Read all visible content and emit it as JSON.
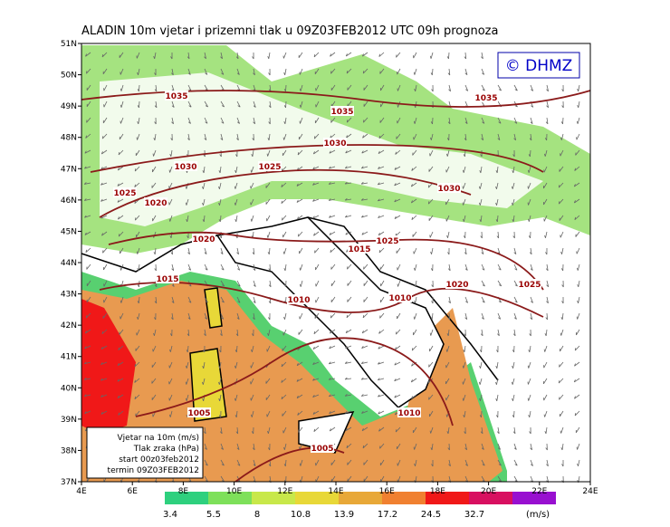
{
  "title": "ALADIN 10m vjetar i prizemni tlak u 09Z03FEB2012 UTC 09h prognoza",
  "logo": "© DHMZ",
  "lon_ticks": [
    "4E",
    "6E",
    "8E",
    "10E",
    "12E",
    "14E",
    "16E",
    "18E",
    "20E",
    "22E",
    "24E"
  ],
  "lat_ticks": [
    "37N",
    "38N",
    "39N",
    "40N",
    "41N",
    "42N",
    "43N",
    "44N",
    "45N",
    "46N",
    "47N",
    "48N",
    "49N",
    "50N",
    "51N"
  ],
  "isobars": [
    "1035",
    "1035",
    "1035",
    "1030",
    "1030",
    "1025",
    "1030",
    "1025",
    "1020",
    "1020",
    "1025",
    "1015",
    "1015",
    "1020",
    "1025",
    "1010",
    "1010",
    "1005",
    "1010",
    "1005"
  ],
  "info": [
    "Vjetar na 10m (m/s)",
    "Tlak zraka (hPa)",
    "start 00z03feb2012",
    "termin 09Z03FEB2012"
  ],
  "legend": {
    "labels": [
      "3.4",
      "5.5",
      "8",
      "10.8",
      "13.9",
      "17.2",
      "24.5",
      "32.7"
    ],
    "unit": "(m/s)",
    "colors": [
      "#2ed07e",
      "#7ee05a",
      "#c8e84a",
      "#e8d838",
      "#e8a838",
      "#f08030",
      "#f01818",
      "#d81060",
      "#9810d0"
    ]
  }
}
